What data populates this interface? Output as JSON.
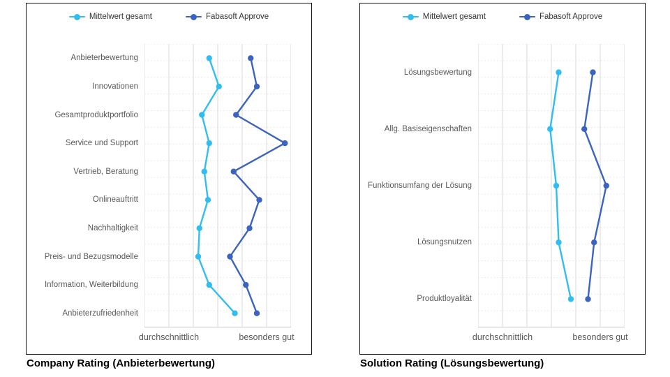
{
  "chart_data": [
    {
      "type": "line",
      "orientation": "vertical-category",
      "title": "Company Rating (Anbieterbewertung)",
      "legend_position": "top",
      "grid": {
        "vertical": "solid",
        "horizontal": "dashed"
      },
      "xlim": [
        0,
        6
      ],
      "x_ticks": [
        {
          "value": 1,
          "label": "durchschnittlich"
        },
        {
          "value": 5,
          "label": "besonders gut"
        }
      ],
      "categories": [
        "Anbieterbewertung",
        "Innovationen",
        "Gesamtproduktportfolio",
        "Service und Support",
        "Vertrieb, Beratung",
        "Onlineauftritt",
        "Nachhaltigkeit",
        "Preis- und Bezugsmodelle",
        "Information, Weiterbildung",
        "Anbieterzufriedenheit"
      ],
      "series": [
        {
          "name": "Mittelwert gesamt",
          "color": "#33BDEE",
          "values": [
            2.65,
            3.05,
            2.35,
            2.65,
            2.45,
            2.6,
            2.25,
            2.2,
            2.65,
            3.7
          ]
        },
        {
          "name": "Fabasoft Approve",
          "color": "#3C63C0",
          "values": [
            4.35,
            4.6,
            3.75,
            5.75,
            3.65,
            4.7,
            4.3,
            3.5,
            4.15,
            4.6
          ]
        }
      ]
    },
    {
      "type": "line",
      "orientation": "vertical-category",
      "title": "Solution Rating (Lösungsbewertung)",
      "legend_position": "top",
      "grid": {
        "vertical": "solid",
        "horizontal": "dashed"
      },
      "xlim": [
        0,
        6
      ],
      "x_ticks": [
        {
          "value": 1,
          "label": "durchschnittlich"
        },
        {
          "value": 5,
          "label": "besonders gut"
        }
      ],
      "categories": [
        "Lösungsbewertung",
        "Allg. Basiseigenschaften",
        "Funktionsumfang der Lösung",
        "Lösungsnutzen",
        "Produktloyalität"
      ],
      "series": [
        {
          "name": "Mittelwert gesamt",
          "color": "#33BDEE",
          "values": [
            3.3,
            2.95,
            3.2,
            3.3,
            3.8
          ]
        },
        {
          "name": "Fabasoft Approve",
          "color": "#3C63C0",
          "values": [
            4.7,
            4.35,
            5.25,
            4.75,
            4.5
          ]
        }
      ]
    }
  ],
  "colors": {
    "grid_vertical": "#D9D9D9",
    "grid_horizontal_dashed": "#E9E9E9",
    "axis_line": "#C8C8C8",
    "label_text": "#595959",
    "legend_text": "#333333",
    "panel_border": "#111111"
  }
}
